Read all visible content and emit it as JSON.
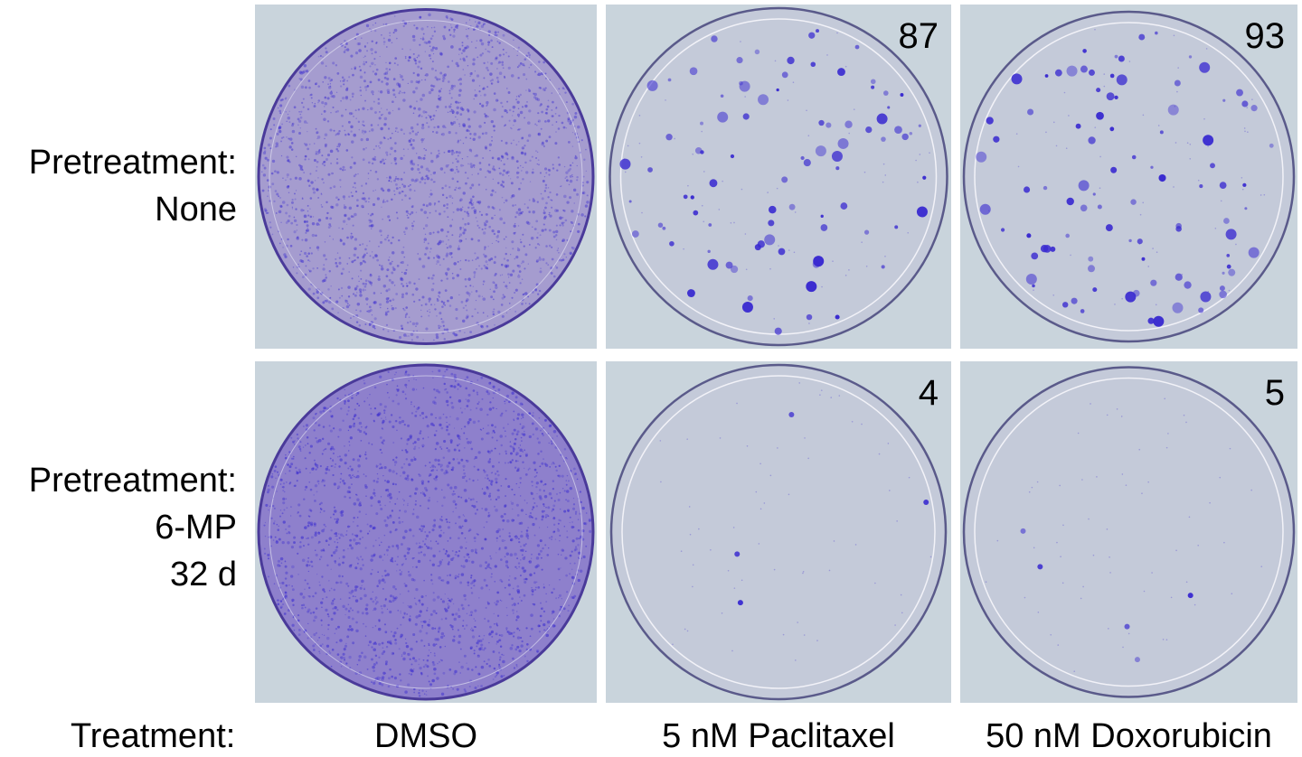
{
  "row_labels": [
    {
      "lines": [
        "Pretreatment:",
        "None"
      ]
    },
    {
      "lines": [
        "Pretreatment:",
        "6-MP",
        "32 d"
      ]
    }
  ],
  "column_header": "Treatment:",
  "columns": [
    "DMSO",
    "5 nM Paclitaxel",
    "50 nM Doxorubicin"
  ],
  "colony_counts": {
    "none_paclitaxel": "87",
    "none_doxorubicin": "93",
    "mp_paclitaxel": "4",
    "mp_doxorubicin": "5"
  },
  "colors": {
    "stain": "#3a2bd0",
    "lawn": "#7a6cc4",
    "plate_bg": "#c9d4dc"
  }
}
